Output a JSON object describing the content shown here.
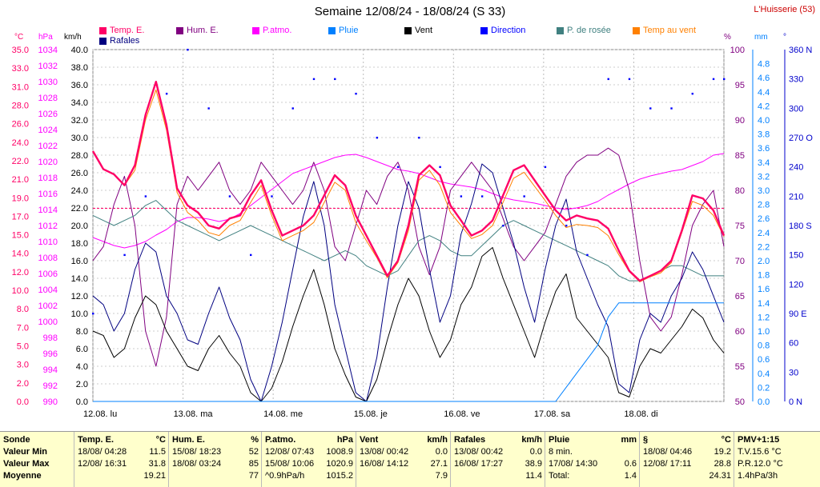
{
  "header": {
    "title": "Semaine 12/08/24 - 18/08/24 (S 33)",
    "station": "L'Huisserie (53)"
  },
  "legend": [
    {
      "label": "Temp. E.",
      "color": "#ff0066"
    },
    {
      "label": "Hum. E.",
      "color": "#800080"
    },
    {
      "label": "P.atmo.",
      "color": "#ff00ff"
    },
    {
      "label": "Pluie",
      "color": "#0080ff"
    },
    {
      "label": "Vent",
      "color": "#000000"
    },
    {
      "label": "Direction",
      "color": "#0000ff"
    },
    {
      "label": "P. de rosée",
      "color": "#408080"
    },
    {
      "label": "Temp au vent",
      "color": "#ff8000"
    },
    {
      "label": "Rafales",
      "color": "#000080"
    }
  ],
  "axis_units": {
    "temp": "°C",
    "press": "hPa",
    "wind": "km/h",
    "hum": "%",
    "rain": "mm",
    "dir": "°"
  },
  "chart_data": {
    "type": "line",
    "title": "Semaine 12/08/24 - 18/08/24 (S 33)",
    "x_labels": [
      "12.08. lu",
      "13.08. ma",
      "14.08. me",
      "15.08. je",
      "16.08. ve",
      "17.08. sa",
      "18.08. di"
    ],
    "axes": {
      "temp": {
        "unit": "°C",
        "range": [
          0,
          35
        ],
        "ticks": [
          "35.0",
          "33.0",
          "31.0",
          "28.0",
          "26.0",
          "24.0",
          "22.0",
          "21.0",
          "19.0",
          "17.0",
          "15.0",
          "14.0",
          "12.0",
          "10.0",
          "8.0",
          "7.0",
          "5.0",
          "3.0",
          "2.0",
          "0.0"
        ]
      },
      "press": {
        "unit": "hPa",
        "range": [
          990,
          1034
        ],
        "ticks": [
          "1034",
          "1032",
          "1030",
          "1028",
          "1026",
          "1024",
          "1022",
          "1020",
          "1018",
          "1016",
          "1014",
          "1012",
          "1010",
          "1008",
          "1006",
          "1004",
          "1002",
          "1000",
          "998",
          "996",
          "994",
          "992",
          "990"
        ]
      },
      "wind": {
        "unit": "km/h",
        "range": [
          0,
          40
        ],
        "ticks": [
          "40.0",
          "38.0",
          "36.0",
          "34.0",
          "32.0",
          "30.0",
          "28.0",
          "26.0",
          "24.0",
          "22.0",
          "20.0",
          "18.0",
          "16.0",
          "14.0",
          "12.0",
          "10.0",
          "8.0",
          "6.0",
          "4.0",
          "2.0",
          "0.0"
        ]
      },
      "hum": {
        "unit": "%",
        "range": [
          50,
          100
        ],
        "ticks": [
          "100",
          "95",
          "90",
          "85",
          "80",
          "75",
          "70",
          "65",
          "60",
          "55",
          "50"
        ]
      },
      "rain": {
        "unit": "mm",
        "range": [
          0,
          5
        ],
        "ticks": [
          "4.8",
          "4.6",
          "4.4",
          "4.2",
          "4.0",
          "3.8",
          "3.6",
          "3.4",
          "3.2",
          "3.0",
          "2.8",
          "2.6",
          "2.4",
          "2.2",
          "2.0",
          "1.8",
          "1.6",
          "1.4",
          "1.2",
          "1.0",
          "0.8",
          "0.6",
          "0.4",
          "0.2",
          "0.0"
        ]
      },
      "dir": {
        "unit": "°",
        "range": [
          0,
          360
        ],
        "ticks": [
          "360 N",
          "330",
          "300",
          "270 O",
          "240",
          "210",
          "180 S",
          "150",
          "120",
          "90 E",
          "60",
          "30",
          "0 N"
        ]
      }
    },
    "series": [
      {
        "name": "Temp. E.",
        "color": "#ff0066",
        "axis": "temp",
        "values": [
          24.9,
          23.1,
          22.6,
          21.5,
          23.5,
          28.5,
          31.8,
          27.5,
          21.2,
          19.5,
          18.8,
          17.5,
          17.2,
          18.2,
          18.5,
          20.5,
          22.0,
          19.0,
          16.5,
          17.0,
          17.5,
          18.5,
          20.5,
          22.5,
          21.5,
          18.5,
          16.5,
          14.5,
          12.5,
          14.0,
          17.5,
          22.5,
          23.5,
          22.5,
          19.5,
          18.0,
          16.5,
          17.0,
          18.0,
          20.5,
          23.0,
          23.5,
          22.0,
          20.5,
          19.0,
          18.0,
          18.5,
          18.2,
          18.0,
          17.2,
          15.0,
          13.0,
          12.0,
          12.5,
          13.0,
          14.0,
          17.0,
          20.5,
          20.2,
          19.0,
          16.5
        ]
      },
      {
        "name": "Temp au vent",
        "color": "#ff8000",
        "axis": "temp",
        "values": [
          24.9,
          23.1,
          22.6,
          21.5,
          23.0,
          28.0,
          31.0,
          27.0,
          20.8,
          18.8,
          18.0,
          16.8,
          16.5,
          17.5,
          18.0,
          19.8,
          21.5,
          18.5,
          16.0,
          16.5,
          17.0,
          17.8,
          19.8,
          21.8,
          21.0,
          17.8,
          16.0,
          14.3,
          12.3,
          13.8,
          17.0,
          22.0,
          23.0,
          21.5,
          18.8,
          17.5,
          16.2,
          16.6,
          17.5,
          19.8,
          22.2,
          22.8,
          21.4,
          20.0,
          18.5,
          17.3,
          17.6,
          17.5,
          17.3,
          16.5,
          14.6,
          12.9,
          11.9,
          12.4,
          12.8,
          13.8,
          16.8,
          19.9,
          19.5,
          18.5,
          16.4
        ]
      },
      {
        "name": "P. de rosée",
        "color": "#408080",
        "axis": "temp",
        "values": [
          18.5,
          18.0,
          17.5,
          18.0,
          18.5,
          19.5,
          20.0,
          19.0,
          18.0,
          17.5,
          17.0,
          16.5,
          16.0,
          16.5,
          17.0,
          17.5,
          17.0,
          16.5,
          16.0,
          15.5,
          15.0,
          14.5,
          14.0,
          14.5,
          15.0,
          14.5,
          13.5,
          13.0,
          12.5,
          13.0,
          14.5,
          16.0,
          16.5,
          16.0,
          15.0,
          14.5,
          14.5,
          15.5,
          16.5,
          17.5,
          18.0,
          17.5,
          17.0,
          16.5,
          16.0,
          15.5,
          15.0,
          14.5,
          14.0,
          13.5,
          12.5,
          12.0,
          12.0,
          12.5,
          13.0,
          13.5,
          13.5,
          13.0,
          12.5,
          12.5,
          12.5
        ]
      },
      {
        "name": "Hum. E.",
        "color": "#800080",
        "axis": "hum",
        "values": [
          70,
          72,
          78,
          82,
          75,
          60,
          55,
          62,
          78,
          82,
          80,
          82,
          84,
          80,
          78,
          80,
          84,
          82,
          80,
          78,
          80,
          84,
          80,
          72,
          70,
          75,
          80,
          78,
          82,
          84,
          80,
          72,
          68,
          72,
          80,
          82,
          84,
          82,
          80,
          76,
          72,
          70,
          72,
          74,
          78,
          82,
          84,
          85,
          85,
          86,
          85,
          80,
          70,
          62,
          60,
          62,
          68,
          75,
          78,
          80,
          72
        ]
      },
      {
        "name": "P.atmo.",
        "color": "#ff00ff",
        "axis": "press",
        "values": [
          1010.5,
          1010.0,
          1009.5,
          1009.2,
          1009.5,
          1010.0,
          1010.8,
          1011.5,
          1012.5,
          1013.0,
          1013.0,
          1012.8,
          1012.5,
          1012.8,
          1013.5,
          1014.5,
          1015.5,
          1016.5,
          1017.5,
          1018.5,
          1019.0,
          1019.5,
          1020.0,
          1020.5,
          1020.8,
          1020.9,
          1020.5,
          1020.0,
          1019.5,
          1019.0,
          1018.8,
          1018.5,
          1018.0,
          1017.5,
          1017.2,
          1017.0,
          1016.8,
          1016.5,
          1016.0,
          1015.5,
          1015.2,
          1015.0,
          1014.8,
          1014.5,
          1014.2,
          1014.0,
          1014.2,
          1014.5,
          1015.0,
          1015.8,
          1016.5,
          1017.2,
          1017.8,
          1018.2,
          1018.5,
          1018.8,
          1019.0,
          1019.5,
          1020.0,
          1020.8,
          1021.0
        ]
      },
      {
        "name": "Vent",
        "color": "#000000",
        "axis": "wind",
        "values": [
          8.0,
          7.5,
          5.0,
          6.0,
          9.5,
          12.0,
          11.0,
          8.0,
          6.0,
          4.0,
          3.5,
          6.0,
          7.5,
          5.5,
          4.0,
          1.0,
          0.0,
          1.5,
          4.5,
          8.5,
          12.0,
          15.0,
          11.0,
          6.0,
          3.0,
          0.5,
          0.0,
          2.5,
          7.0,
          11.0,
          14.0,
          12.0,
          8.0,
          5.0,
          7.0,
          11.0,
          13.0,
          16.5,
          17.5,
          14.0,
          11.0,
          8.0,
          5.0,
          9.0,
          12.5,
          14.5,
          9.5,
          8.0,
          6.5,
          5.0,
          1.0,
          0.5,
          4.0,
          6.0,
          5.5,
          7.0,
          8.5,
          10.5,
          9.5,
          7.0,
          5.5
        ]
      },
      {
        "name": "Rafales",
        "color": "#000080",
        "axis": "wind",
        "values": [
          12.0,
          11.0,
          8.0,
          10.0,
          15.0,
          18.0,
          17.0,
          12.0,
          10.0,
          7.0,
          6.5,
          10.0,
          13.0,
          9.5,
          7.0,
          2.5,
          0.0,
          4.0,
          9.0,
          15.0,
          21.0,
          25.0,
          20.0,
          11.0,
          6.0,
          1.0,
          0.0,
          5.0,
          13.0,
          20.0,
          25.0,
          22.0,
          15.0,
          9.0,
          12.0,
          19.0,
          22.5,
          27.0,
          26.0,
          22.0,
          18.0,
          13.0,
          9.0,
          15.0,
          20.0,
          23.0,
          17.0,
          14.0,
          11.0,
          8.5,
          2.0,
          1.0,
          7.0,
          10.0,
          9.0,
          12.0,
          14.0,
          17.0,
          15.0,
          12.0,
          9.0
        ]
      },
      {
        "name": "Pluie",
        "color": "#0080ff",
        "axis": "rain",
        "values": [
          0,
          0,
          0,
          0,
          0,
          0,
          0,
          0,
          0,
          0,
          0,
          0,
          0,
          0,
          0,
          0,
          0,
          0,
          0,
          0,
          0,
          0,
          0,
          0,
          0,
          0,
          0,
          0,
          0,
          0,
          0,
          0,
          0,
          0,
          0,
          0,
          0,
          0,
          0,
          0,
          0,
          0,
          0,
          0,
          0,
          0.2,
          0.4,
          0.6,
          0.8,
          1.2,
          1.4,
          1.4,
          1.4,
          1.4,
          1.4,
          1.4,
          1.4,
          1.4,
          1.4,
          1.4,
          1.4
        ]
      }
    ],
    "direction_points": [
      [
        0,
        90
      ],
      [
        3,
        150
      ],
      [
        5,
        210
      ],
      [
        7,
        315
      ],
      [
        9,
        360
      ],
      [
        11,
        300
      ],
      [
        13,
        210
      ],
      [
        15,
        150
      ],
      [
        17,
        210
      ],
      [
        19,
        300
      ],
      [
        21,
        330
      ],
      [
        23,
        330
      ],
      [
        25,
        315
      ],
      [
        27,
        270
      ],
      [
        29,
        240
      ],
      [
        31,
        270
      ],
      [
        33,
        240
      ],
      [
        35,
        210
      ],
      [
        37,
        210
      ],
      [
        39,
        180
      ],
      [
        41,
        210
      ],
      [
        43,
        240
      ],
      [
        45,
        180
      ],
      [
        47,
        150
      ],
      [
        49,
        330
      ],
      [
        51,
        330
      ],
      [
        53,
        300
      ],
      [
        55,
        300
      ],
      [
        57,
        315
      ],
      [
        59,
        330
      ],
      [
        60,
        330
      ]
    ]
  },
  "stats": {
    "columns": [
      {
        "header": "Sonde",
        "unit": "",
        "rows": [
          "Valeur Min",
          "Valeur Max",
          "Moyenne"
        ]
      },
      {
        "header": "Temp. E.",
        "unit": "°C",
        "rows": [
          [
            "18/08/ 04:28",
            "11.5"
          ],
          [
            "12/08/ 16:31",
            "31.8"
          ],
          [
            "",
            "19.21"
          ]
        ]
      },
      {
        "header": "Hum. E.",
        "unit": "%",
        "rows": [
          [
            "15/08/ 18:23",
            "52"
          ],
          [
            "18/08/ 03:24",
            "85"
          ],
          [
            "",
            "77"
          ]
        ]
      },
      {
        "header": "P.atmo.",
        "unit": "hPa",
        "rows": [
          [
            "12/08/ 07:43",
            "1008.9"
          ],
          [
            "15/08/ 10:06",
            "1020.9"
          ],
          [
            "^0.9hPa/h",
            "1015.2"
          ]
        ]
      },
      {
        "header": "Vent",
        "unit": "km/h",
        "rows": [
          [
            "13/08/ 00:42",
            "0.0"
          ],
          [
            "16/08/ 14:12",
            "27.1"
          ],
          [
            "",
            "7.9"
          ]
        ]
      },
      {
        "header": "Rafales",
        "unit": "km/h",
        "rows": [
          [
            "13/08/ 00:42",
            "0.0"
          ],
          [
            "16/08/ 17:27",
            "38.9"
          ],
          [
            "",
            "11.4"
          ]
        ]
      },
      {
        "header": "Pluie",
        "unit": "mm",
        "rows": [
          [
            "8 min.",
            ""
          ],
          [
            "17/08/ 14:30",
            "0.6"
          ],
          [
            "Total:",
            "1.4"
          ]
        ]
      },
      {
        "header": "§",
        "unit": "°C",
        "rows": [
          [
            "18/08/ 04:46",
            "19.2"
          ],
          [
            "12/08/ 17:11",
            "28.8"
          ],
          [
            "",
            "24.31"
          ]
        ]
      },
      {
        "header": "PMV+1:15",
        "unit": "",
        "rows": [
          [
            "T.V.15.6 °C",
            ""
          ],
          [
            "P.R.12.0 °C",
            ""
          ],
          [
            "1.4hPa/3h",
            ""
          ]
        ]
      }
    ]
  }
}
